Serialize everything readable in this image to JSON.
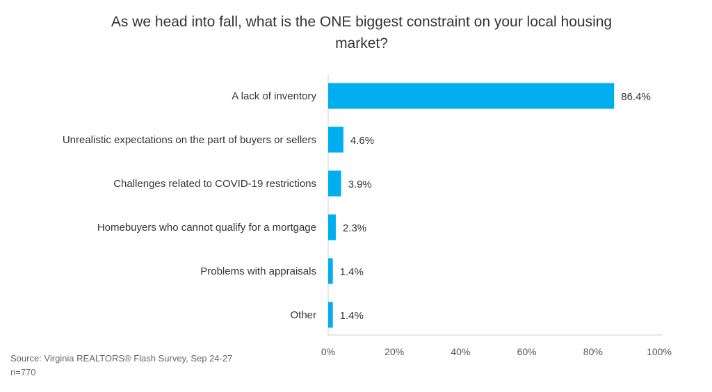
{
  "chart_data": {
    "type": "bar",
    "orientation": "horizontal",
    "title": "As we head into fall, what is the ONE biggest constraint on your local housing market?",
    "categories": [
      "A lack of inventory",
      "Unrealistic expectations on the part of buyers or sellers",
      "Challenges related to COVID-19 restrictions",
      "Homebuyers who cannot qualify for a mortgage",
      "Problems with appraisals",
      "Other"
    ],
    "values": [
      86.4,
      4.6,
      3.9,
      2.3,
      1.4,
      1.4
    ],
    "data_labels": [
      "86.4%",
      "4.6%",
      "3.9%",
      "2.3%",
      "1.4%",
      "1.4%"
    ],
    "xlim": [
      0,
      100
    ],
    "xticks": [
      "0%",
      "20%",
      "40%",
      "60%",
      "80%",
      "100%"
    ],
    "xlabel": "",
    "ylabel": "",
    "grid": false,
    "bar_color": "#00AEEF"
  },
  "footer": {
    "source": "Source: Virginia REALTORS® Flash Survey, Sep 24-27",
    "sample": "n=770"
  }
}
